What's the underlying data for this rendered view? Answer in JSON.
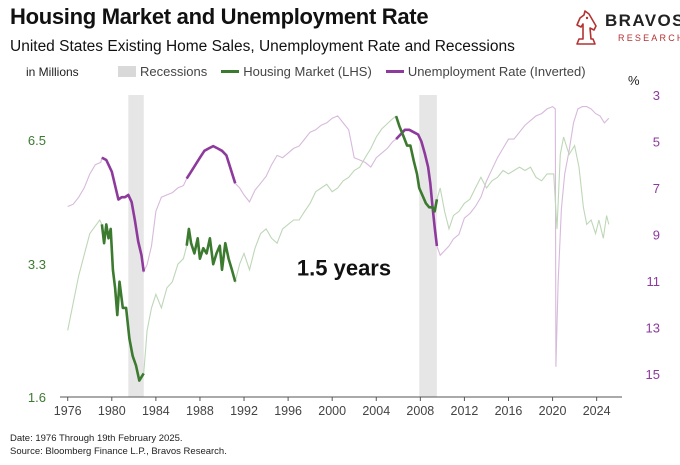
{
  "header": {
    "title": "Housing Market and Unemployment Rate",
    "subtitle": "United States Existing Home Sales, Unemployment Rate and Recessions"
  },
  "logo": {
    "brand": "BRAVOS",
    "tagline": "RESEARCH"
  },
  "footer": {
    "date_note": "Date: 1976 Through 19th February 2025.",
    "source_note": "Source: Bloomberg Finance L.P., Bravos Research."
  },
  "colors": {
    "housing": "#3b7a2f",
    "unemployment": "#8e3a9d",
    "recession": "#e6e6e6"
  },
  "chart_data": {
    "type": "line",
    "title": "Housing Market and Unemployment Rate",
    "left_axis_unit": "in Millions",
    "right_axis_unit": "%",
    "x_range": [
      1975.3,
      2026.3
    ],
    "x_ticks": [
      1976,
      1980,
      1984,
      1988,
      1992,
      1996,
      2000,
      2004,
      2008,
      2012,
      2016,
      2020,
      2024
    ],
    "y_left": {
      "scale": "log",
      "range": [
        1.6,
        8.3
      ],
      "ticks": [
        1.6,
        3.3,
        6.5
      ],
      "color": "#3b7a2f"
    },
    "y_right": {
      "inverted": true,
      "range": [
        3,
        16
      ],
      "ticks": [
        3,
        5,
        7,
        9,
        11,
        13,
        15
      ],
      "color": "#8e3a9d"
    },
    "legend": [
      "Recessions",
      "Housing Market (LHS)",
      "Unemployment Rate (Inverted)"
    ],
    "annotation": {
      "text": "1.5 years",
      "x": 1996.8,
      "y_left": 3.1
    },
    "recessions": [
      [
        1981.5,
        1982.9
      ],
      [
        2007.9,
        2009.5
      ]
    ],
    "highlight_periods": [
      [
        1979.1,
        1982.9
      ],
      [
        1986.8,
        1991.2
      ],
      [
        2005.8,
        2009.5
      ]
    ],
    "series": [
      {
        "name": "Housing Market (LHS)",
        "axis": "left",
        "points": [
          [
            1976,
            2.3
          ],
          [
            1977,
            3.1
          ],
          [
            1978,
            3.9
          ],
          [
            1978.9,
            4.2
          ],
          [
            1979.1,
            4.1
          ],
          [
            1979.3,
            3.7
          ],
          [
            1979.5,
            4.1
          ],
          [
            1979.7,
            3.8
          ],
          [
            1979.9,
            4.0
          ],
          [
            1980.1,
            3.2
          ],
          [
            1980.3,
            2.9
          ],
          [
            1980.5,
            2.5
          ],
          [
            1980.7,
            3.0
          ],
          [
            1981,
            2.6
          ],
          [
            1981.3,
            2.6
          ],
          [
            1981.6,
            2.2
          ],
          [
            1981.9,
            2.0
          ],
          [
            1982.2,
            1.9
          ],
          [
            1982.5,
            1.75
          ],
          [
            1982.9,
            1.82
          ],
          [
            1983.2,
            2.3
          ],
          [
            1983.6,
            2.6
          ],
          [
            1984,
            2.8
          ],
          [
            1984.5,
            2.6
          ],
          [
            1985,
            2.9
          ],
          [
            1985.5,
            3.0
          ],
          [
            1986,
            3.3
          ],
          [
            1986.5,
            3.4
          ],
          [
            1986.8,
            3.65
          ],
          [
            1987,
            4.0
          ],
          [
            1987.2,
            3.7
          ],
          [
            1987.5,
            3.5
          ],
          [
            1987.8,
            3.8
          ],
          [
            1988,
            3.4
          ],
          [
            1988.3,
            3.6
          ],
          [
            1988.6,
            3.5
          ],
          [
            1988.9,
            3.8
          ],
          [
            1989.2,
            3.3
          ],
          [
            1989.5,
            3.5
          ],
          [
            1989.8,
            3.65
          ],
          [
            1990,
            3.2
          ],
          [
            1990.3,
            3.7
          ],
          [
            1990.6,
            3.4
          ],
          [
            1990.9,
            3.2
          ],
          [
            1991.2,
            3.0
          ],
          [
            1991.6,
            3.3
          ],
          [
            1992,
            3.5
          ],
          [
            1992.5,
            3.2
          ],
          [
            1993,
            3.6
          ],
          [
            1993.5,
            3.9
          ],
          [
            1994,
            4.0
          ],
          [
            1994.5,
            3.8
          ],
          [
            1995,
            3.7
          ],
          [
            1995.5,
            4.0
          ],
          [
            1996,
            4.1
          ],
          [
            1996.5,
            4.2
          ],
          [
            1997,
            4.2
          ],
          [
            1997.5,
            4.4
          ],
          [
            1998,
            4.6
          ],
          [
            1998.5,
            4.9
          ],
          [
            1999,
            5.0
          ],
          [
            1999.5,
            5.1
          ],
          [
            2000,
            4.9
          ],
          [
            2000.5,
            5.0
          ],
          [
            2001,
            5.2
          ],
          [
            2001.5,
            5.3
          ],
          [
            2002,
            5.5
          ],
          [
            2002.5,
            5.6
          ],
          [
            2003,
            5.9
          ],
          [
            2003.5,
            6.2
          ],
          [
            2004,
            6.6
          ],
          [
            2004.5,
            6.9
          ],
          [
            2005,
            7.1
          ],
          [
            2005.5,
            7.3
          ],
          [
            2005.8,
            7.4
          ],
          [
            2006.1,
            7.0
          ],
          [
            2006.4,
            6.7
          ],
          [
            2006.8,
            6.3
          ],
          [
            2007.1,
            6.3
          ],
          [
            2007.4,
            5.8
          ],
          [
            2007.7,
            5.4
          ],
          [
            2007.9,
            5.0
          ],
          [
            2008.2,
            4.8
          ],
          [
            2008.5,
            4.6
          ],
          [
            2008.8,
            4.5
          ],
          [
            2009.1,
            4.5
          ],
          [
            2009.3,
            4.4
          ],
          [
            2009.5,
            4.7
          ],
          [
            2009.8,
            5.0
          ],
          [
            2010.2,
            4.4
          ],
          [
            2010.6,
            4.0
          ],
          [
            2011,
            4.3
          ],
          [
            2011.5,
            4.4
          ],
          [
            2012,
            4.6
          ],
          [
            2012.5,
            4.7
          ],
          [
            2013,
            5.0
          ],
          [
            2013.5,
            5.3
          ],
          [
            2014,
            5.0
          ],
          [
            2014.5,
            5.2
          ],
          [
            2015,
            5.3
          ],
          [
            2015.5,
            5.5
          ],
          [
            2016,
            5.4
          ],
          [
            2016.5,
            5.5
          ],
          [
            2017,
            5.6
          ],
          [
            2017.5,
            5.5
          ],
          [
            2018,
            5.6
          ],
          [
            2018.5,
            5.3
          ],
          [
            2019,
            5.2
          ],
          [
            2019.5,
            5.4
          ],
          [
            2020.1,
            5.4
          ],
          [
            2020.4,
            4.0
          ],
          [
            2020.7,
            6.0
          ],
          [
            2021,
            6.6
          ],
          [
            2021.5,
            6.0
          ],
          [
            2022,
            6.3
          ],
          [
            2022.4,
            5.6
          ],
          [
            2022.8,
            4.5
          ],
          [
            2023.1,
            4.1
          ],
          [
            2023.5,
            4.2
          ],
          [
            2023.9,
            3.9
          ],
          [
            2024.2,
            4.2
          ],
          [
            2024.6,
            3.8
          ],
          [
            2024.9,
            4.3
          ],
          [
            2025.1,
            4.1
          ]
        ]
      },
      {
        "name": "Unemployment Rate (Inverted)",
        "axis": "right",
        "points": [
          [
            1976,
            7.8
          ],
          [
            1976.5,
            7.7
          ],
          [
            1977,
            7.4
          ],
          [
            1977.5,
            7.0
          ],
          [
            1978,
            6.4
          ],
          [
            1978.5,
            6.0
          ],
          [
            1979,
            5.9
          ],
          [
            1979.1,
            5.7
          ],
          [
            1979.5,
            5.8
          ],
          [
            1980,
            6.3
          ],
          [
            1980.3,
            6.9
          ],
          [
            1980.6,
            7.5
          ],
          [
            1980.9,
            7.4
          ],
          [
            1981.2,
            7.4
          ],
          [
            1981.5,
            7.3
          ],
          [
            1981.8,
            7.6
          ],
          [
            1982.1,
            8.4
          ],
          [
            1982.4,
            9.3
          ],
          [
            1982.7,
            9.9
          ],
          [
            1982.9,
            10.6
          ],
          [
            1983.2,
            10.3
          ],
          [
            1983.6,
            9.5
          ],
          [
            1984,
            8.0
          ],
          [
            1984.5,
            7.4
          ],
          [
            1985,
            7.3
          ],
          [
            1985.5,
            7.2
          ],
          [
            1986,
            7.0
          ],
          [
            1986.5,
            6.9
          ],
          [
            1986.8,
            6.6
          ],
          [
            1987.2,
            6.3
          ],
          [
            1987.6,
            6.0
          ],
          [
            1988,
            5.7
          ],
          [
            1988.4,
            5.4
          ],
          [
            1988.8,
            5.3
          ],
          [
            1989.2,
            5.2
          ],
          [
            1989.6,
            5.3
          ],
          [
            1990,
            5.4
          ],
          [
            1990.4,
            5.6
          ],
          [
            1990.8,
            6.2
          ],
          [
            1991.2,
            6.8
          ],
          [
            1991.6,
            7.0
          ],
          [
            1992,
            7.3
          ],
          [
            1992.5,
            7.6
          ],
          [
            1993,
            7.1
          ],
          [
            1993.5,
            6.8
          ],
          [
            1994,
            6.5
          ],
          [
            1994.5,
            6.0
          ],
          [
            1995,
            5.6
          ],
          [
            1995.5,
            5.7
          ],
          [
            1996,
            5.5
          ],
          [
            1996.5,
            5.3
          ],
          [
            1997,
            5.2
          ],
          [
            1997.5,
            4.9
          ],
          [
            1998,
            4.6
          ],
          [
            1998.5,
            4.5
          ],
          [
            1999,
            4.3
          ],
          [
            1999.5,
            4.2
          ],
          [
            2000,
            4.0
          ],
          [
            2000.5,
            3.9
          ],
          [
            2001,
            4.2
          ],
          [
            2001.5,
            4.5
          ],
          [
            2002,
            5.7
          ],
          [
            2002.5,
            5.8
          ],
          [
            2003,
            5.9
          ],
          [
            2003.5,
            6.1
          ],
          [
            2004,
            5.7
          ],
          [
            2004.5,
            5.5
          ],
          [
            2005,
            5.3
          ],
          [
            2005.5,
            5.0
          ],
          [
            2005.8,
            4.9
          ],
          [
            2006.2,
            4.7
          ],
          [
            2006.6,
            4.5
          ],
          [
            2007,
            4.5
          ],
          [
            2007.4,
            4.6
          ],
          [
            2007.8,
            4.7
          ],
          [
            2008.1,
            5.0
          ],
          [
            2008.4,
            5.5
          ],
          [
            2008.7,
            6.1
          ],
          [
            2008.9,
            6.8
          ],
          [
            2009.1,
            7.8
          ],
          [
            2009.3,
            8.7
          ],
          [
            2009.5,
            9.5
          ],
          [
            2009.8,
            9.9
          ],
          [
            2010.2,
            9.7
          ],
          [
            2010.6,
            9.5
          ],
          [
            2011,
            9.2
          ],
          [
            2011.5,
            9.0
          ],
          [
            2012,
            8.3
          ],
          [
            2012.5,
            8.1
          ],
          [
            2013,
            7.8
          ],
          [
            2013.5,
            7.4
          ],
          [
            2014,
            6.7
          ],
          [
            2014.5,
            6.2
          ],
          [
            2015,
            5.7
          ],
          [
            2015.5,
            5.3
          ],
          [
            2016,
            4.9
          ],
          [
            2016.5,
            4.9
          ],
          [
            2017,
            4.6
          ],
          [
            2017.5,
            4.3
          ],
          [
            2018,
            4.1
          ],
          [
            2018.5,
            3.9
          ],
          [
            2019,
            3.8
          ],
          [
            2019.5,
            3.6
          ],
          [
            2020,
            3.5
          ],
          [
            2020.25,
            3.6
          ],
          [
            2020.3,
            14.7
          ],
          [
            2020.5,
            11.1
          ],
          [
            2020.8,
            7.9
          ],
          [
            2021.1,
            6.4
          ],
          [
            2021.5,
            5.4
          ],
          [
            2021.9,
            4.2
          ],
          [
            2022.3,
            3.6
          ],
          [
            2022.7,
            3.5
          ],
          [
            2023.1,
            3.5
          ],
          [
            2023.5,
            3.6
          ],
          [
            2023.9,
            3.8
          ],
          [
            2024.3,
            3.9
          ],
          [
            2024.7,
            4.2
          ],
          [
            2025.1,
            4.0
          ]
        ]
      }
    ]
  }
}
